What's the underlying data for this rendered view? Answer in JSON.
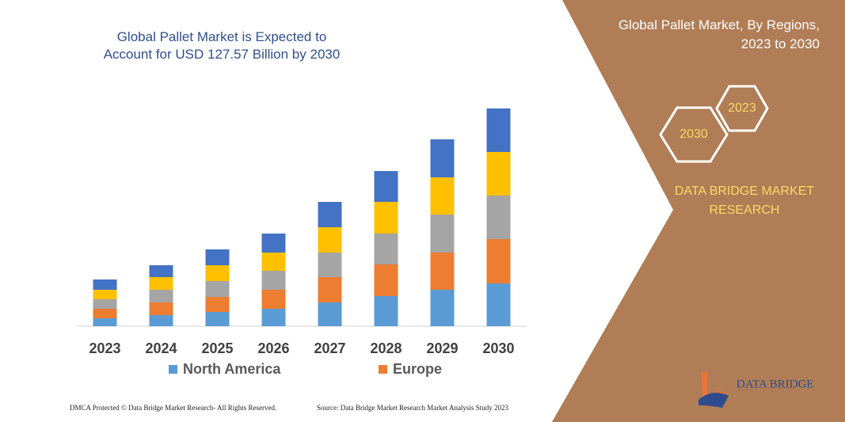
{
  "chart_data": {
    "type": "stacked_bar",
    "title": "Global Pallet Market is Expected to Account for USD 127.57 Billion by 2030",
    "categories": [
      "2023",
      "2024",
      "2025",
      "2026",
      "2027",
      "2028",
      "2029",
      "2030"
    ],
    "series": [
      {
        "name": "North America",
        "color": "#5b9bd5",
        "values": [
          10,
          14,
          18,
          22,
          30,
          38,
          46,
          54
        ]
      },
      {
        "name": "Europe",
        "color": "#ed7d31",
        "values": [
          12,
          16,
          19,
          24,
          32,
          40,
          47,
          56
        ]
      },
      {
        "color": "#a5a5a5",
        "values": [
          12,
          16,
          20,
          24,
          31,
          39,
          48,
          55
        ]
      },
      {
        "color": "#ffc000",
        "values": [
          12,
          16,
          20,
          23,
          32,
          40,
          47,
          55
        ]
      },
      {
        "color": "#4472c4",
        "values": [
          13,
          15,
          20,
          24,
          32,
          39,
          48,
          55
        ]
      }
    ],
    "ylim": [
      0,
      280
    ]
  },
  "side_panel": {
    "heading": "Global Pallet Market, By Regions, 2023 to 2030",
    "hex_top": "2023",
    "hex_bottom": "2030",
    "brand": "DATA BRIDGE MARKET RESEARCH",
    "logo": "DATA BRIDGE"
  },
  "footer": {
    "left": "DMCA Protected © Data Bridge Market Research-  All Rights Reserved.",
    "right": "Source: Data Bridge Market Research  Market Analysis Study 2023"
  }
}
